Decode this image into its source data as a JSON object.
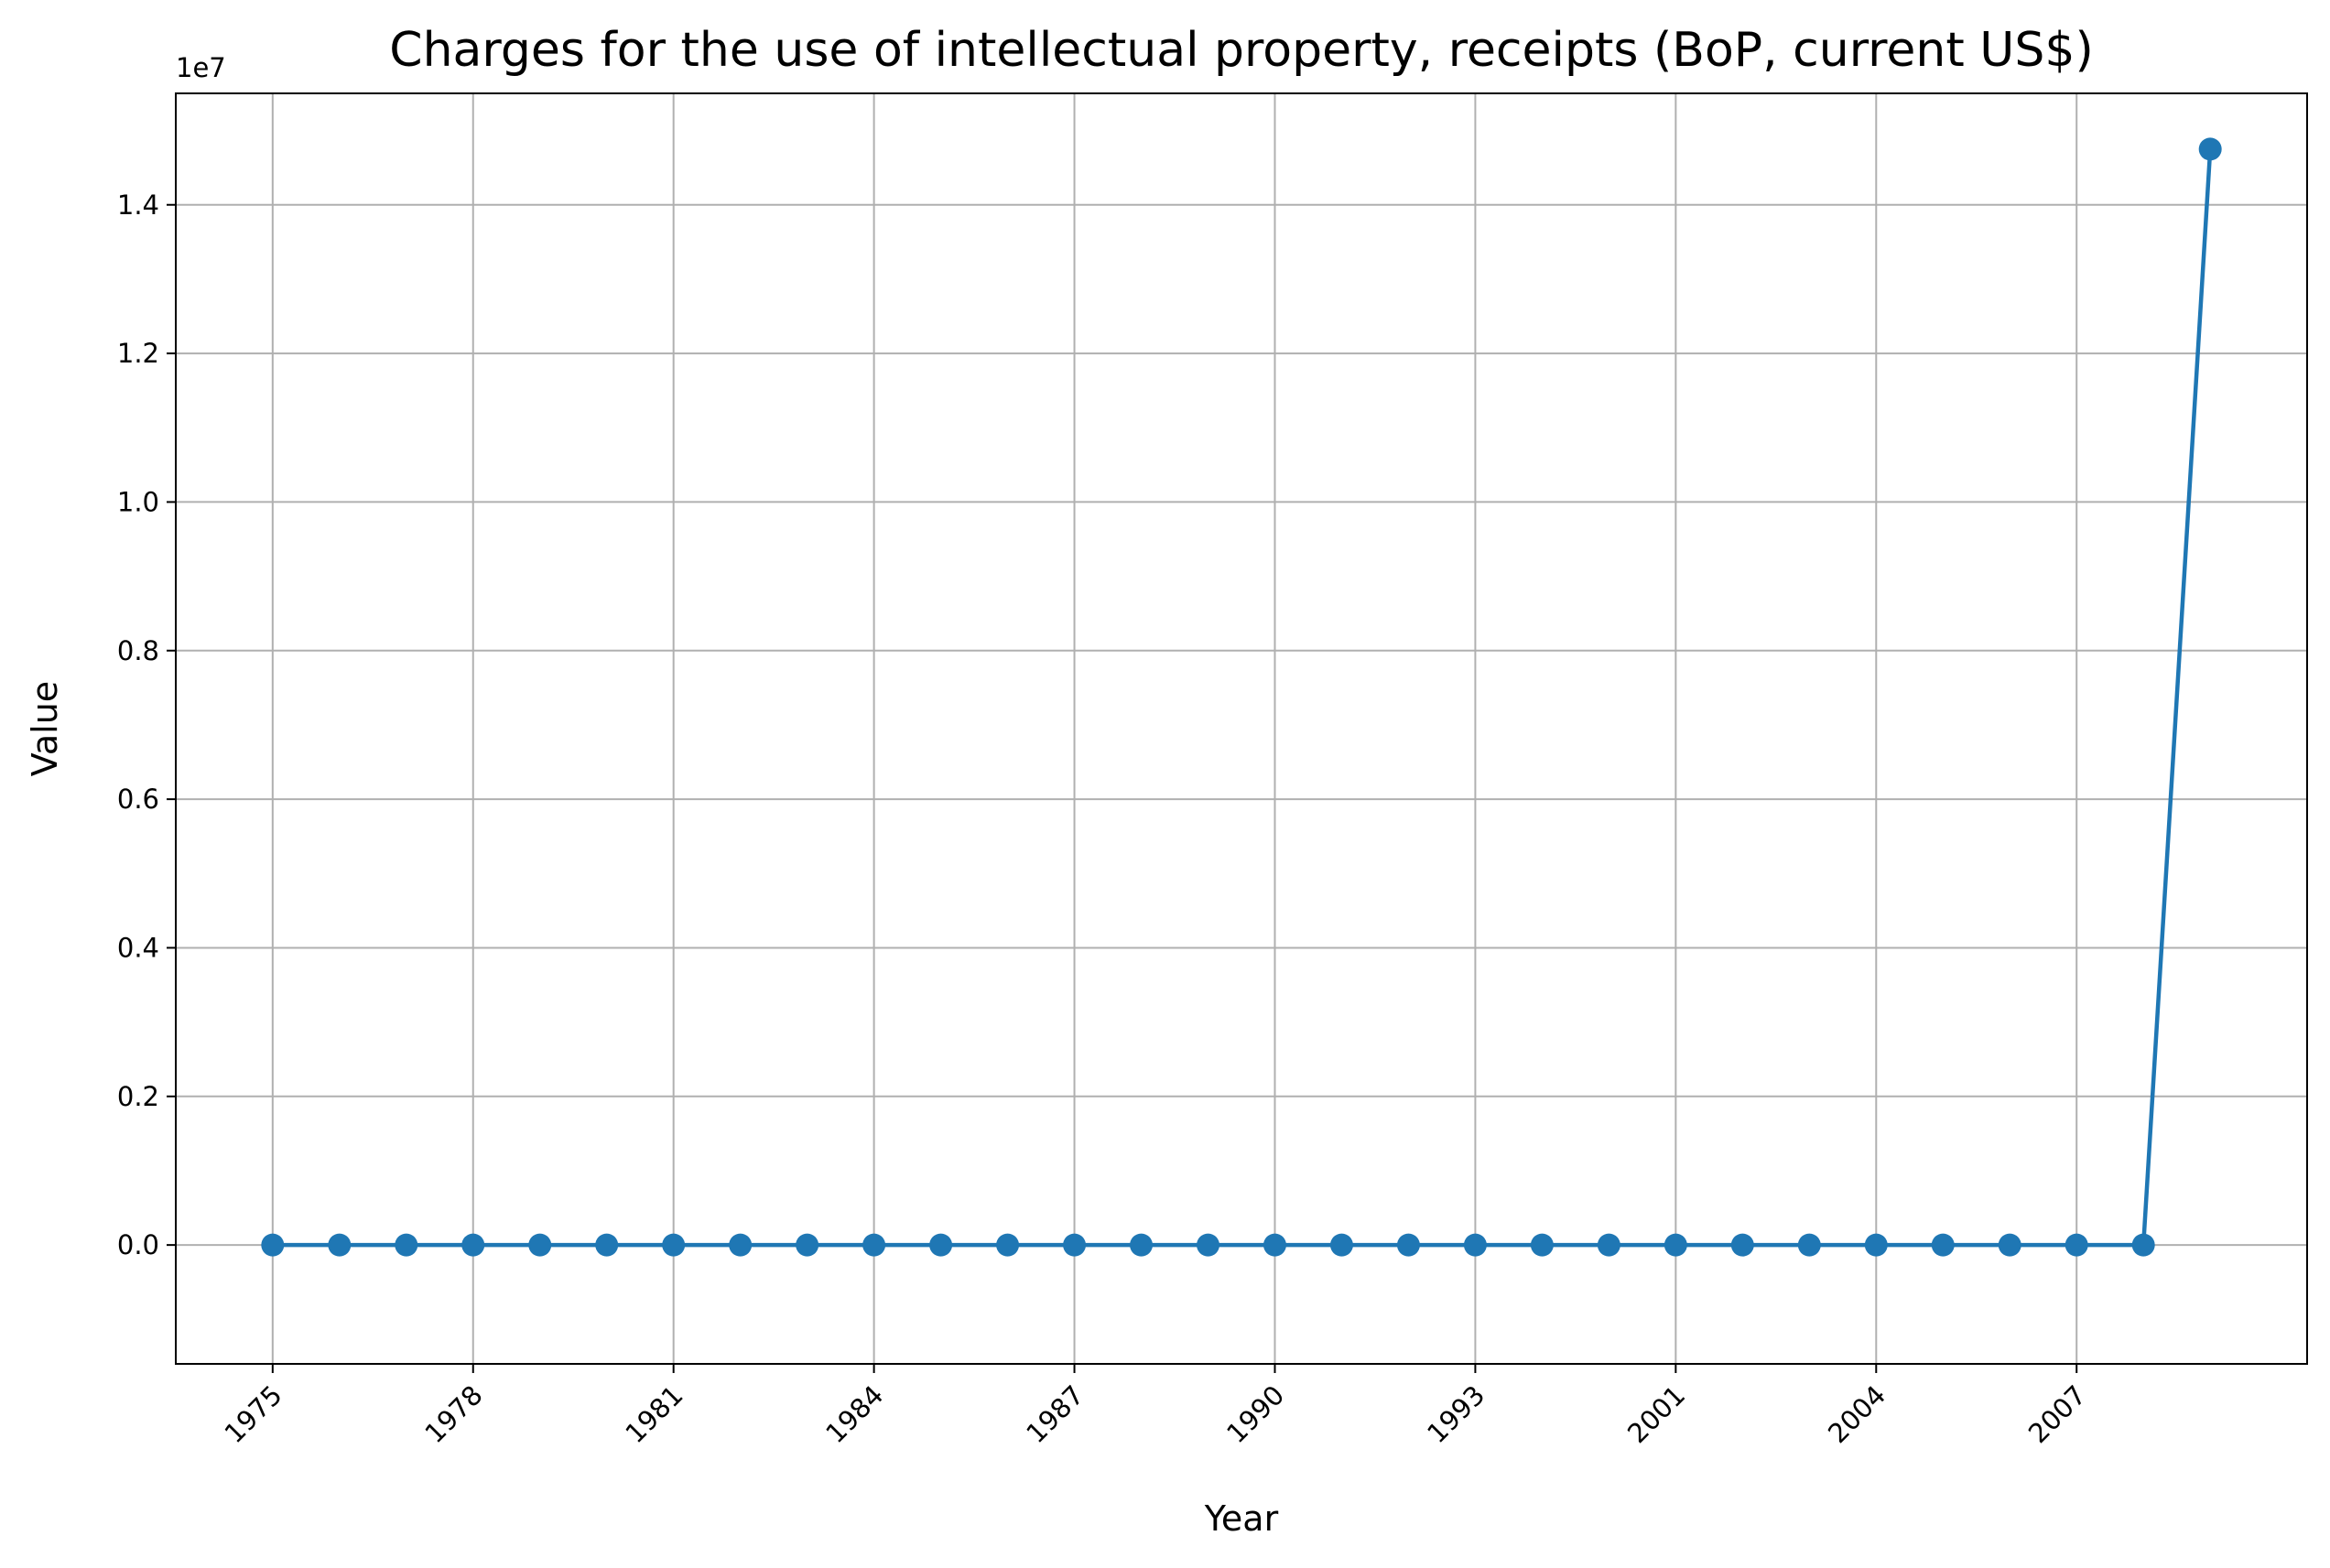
{
  "chart_data": {
    "type": "line",
    "title": "Charges for the use of intellectual property, receipts (BoP, current US$)",
    "xlabel": "Year",
    "ylabel": "Value",
    "y_offset_label": "1e7",
    "grid": true,
    "ylim": [
      -1600000,
      15500000
    ],
    "y_ticks": [
      0,
      2000000,
      4000000,
      6000000,
      8000000,
      10000000,
      12000000,
      14000000
    ],
    "y_tick_labels": [
      "0.0",
      "0.2",
      "0.4",
      "0.6",
      "0.8",
      "1.0",
      "1.2",
      "1.4"
    ],
    "x_tick_labels": [
      "1975",
      "1978",
      "1981",
      "1984",
      "1987",
      "1990",
      "1993",
      "2001",
      "2004",
      "2007"
    ],
    "x_tick_positions": [
      0,
      3,
      6,
      9,
      12,
      15,
      18,
      21,
      24,
      27
    ],
    "color": "#1f77b4",
    "series": [
      {
        "values": [
          0,
          0,
          0,
          0,
          0,
          0,
          0,
          0,
          0,
          0,
          0,
          0,
          0,
          0,
          0,
          0,
          0,
          0,
          0,
          0,
          0,
          0,
          0,
          0,
          0,
          0,
          0,
          0,
          0,
          14750000
        ]
      }
    ]
  }
}
